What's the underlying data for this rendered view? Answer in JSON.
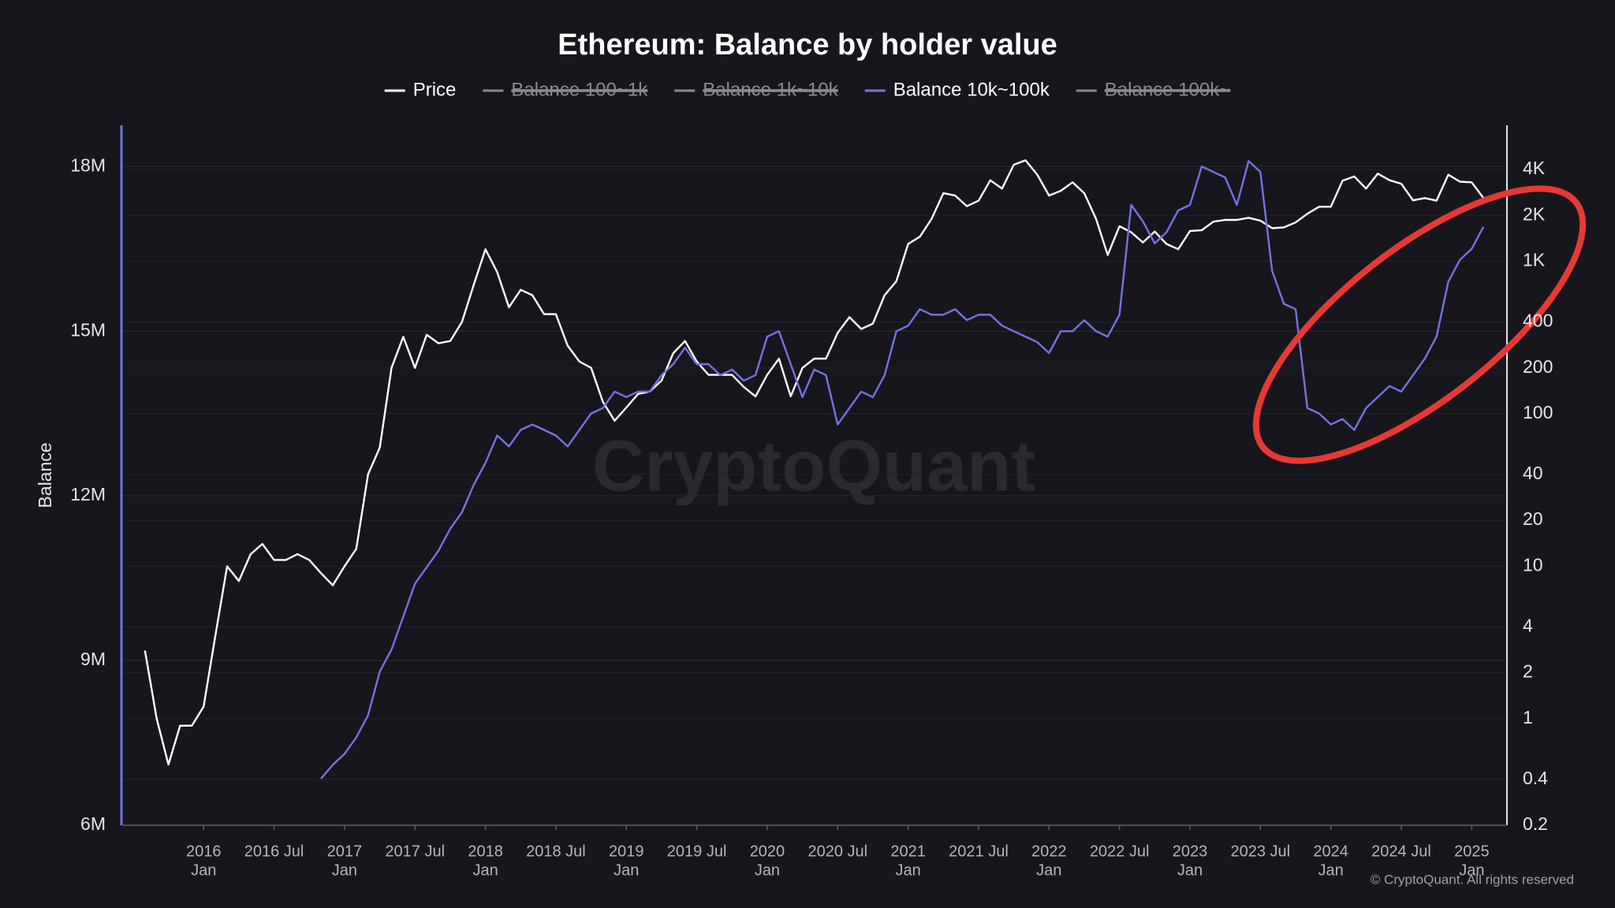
{
  "chart_data": {
    "type": "line",
    "title": "Ethereum: Balance by holder value",
    "ylabel": "Balance",
    "watermark": "CryptoQuant",
    "copyright": "© CryptoQuant. All rights reserved",
    "grid": true,
    "y2scale": "log",
    "xlim": [
      "2015-06",
      "2025-04"
    ],
    "ylim": [
      6000000,
      18750000
    ],
    "y2lim": [
      0.2,
      7800
    ],
    "yticks": [
      {
        "value": 6000000,
        "label": "6M"
      },
      {
        "value": 9000000,
        "label": "9M"
      },
      {
        "value": 12000000,
        "label": "12M"
      },
      {
        "value": 15000000,
        "label": "15M"
      },
      {
        "value": 18000000,
        "label": "18M"
      }
    ],
    "y2ticks": [
      0.2,
      0.4,
      1,
      2,
      4,
      10,
      20,
      40,
      100,
      200,
      400,
      {
        "value": 1000,
        "label": "1K"
      },
      {
        "value": 2000,
        "label": "2K"
      },
      {
        "value": 4000,
        "label": "4K"
      }
    ],
    "xticks": [
      {
        "value": "2016-01",
        "label": "2016",
        "sublabel": "Jan"
      },
      {
        "value": "2016-07",
        "label": "2016 Jul"
      },
      {
        "value": "2017-01",
        "label": "2017",
        "sublabel": "Jan"
      },
      {
        "value": "2017-07",
        "label": "2017 Jul"
      },
      {
        "value": "2018-01",
        "label": "2018",
        "sublabel": "Jan"
      },
      {
        "value": "2018-07",
        "label": "2018 Jul"
      },
      {
        "value": "2019-01",
        "label": "2019",
        "sublabel": "Jan"
      },
      {
        "value": "2019-07",
        "label": "2019 Jul"
      },
      {
        "value": "2020-01",
        "label": "2020",
        "sublabel": "Jan"
      },
      {
        "value": "2020-07",
        "label": "2020 Jul"
      },
      {
        "value": "2021-01",
        "label": "2021",
        "sublabel": "Jan"
      },
      {
        "value": "2021-07",
        "label": "2021 Jul"
      },
      {
        "value": "2022-01",
        "label": "2022",
        "sublabel": "Jan"
      },
      {
        "value": "2022-07",
        "label": "2022 Jul"
      },
      {
        "value": "2023-01",
        "label": "2023",
        "sublabel": "Jan"
      },
      {
        "value": "2023-07",
        "label": "2023 Jul"
      },
      {
        "value": "2024-01",
        "label": "2024",
        "sublabel": "Jan"
      },
      {
        "value": "2024-07",
        "label": "2024 Jul"
      },
      {
        "value": "2025-01",
        "label": "2025",
        "sublabel": "Jan"
      }
    ],
    "x": [
      "2015-08",
      "2015-09",
      "2015-10",
      "2015-11",
      "2015-12",
      "2016-01",
      "2016-02",
      "2016-03",
      "2016-04",
      "2016-05",
      "2016-06",
      "2016-07",
      "2016-08",
      "2016-09",
      "2016-10",
      "2016-11",
      "2016-12",
      "2017-01",
      "2017-02",
      "2017-03",
      "2017-04",
      "2017-05",
      "2017-06",
      "2017-07",
      "2017-08",
      "2017-09",
      "2017-10",
      "2017-11",
      "2017-12",
      "2018-01",
      "2018-02",
      "2018-03",
      "2018-04",
      "2018-05",
      "2018-06",
      "2018-07",
      "2018-08",
      "2018-09",
      "2018-10",
      "2018-11",
      "2018-12",
      "2019-01",
      "2019-02",
      "2019-03",
      "2019-04",
      "2019-05",
      "2019-06",
      "2019-07",
      "2019-08",
      "2019-09",
      "2019-10",
      "2019-11",
      "2019-12",
      "2020-01",
      "2020-02",
      "2020-03",
      "2020-04",
      "2020-05",
      "2020-06",
      "2020-07",
      "2020-08",
      "2020-09",
      "2020-10",
      "2020-11",
      "2020-12",
      "2021-01",
      "2021-02",
      "2021-03",
      "2021-04",
      "2021-05",
      "2021-06",
      "2021-07",
      "2021-08",
      "2021-09",
      "2021-10",
      "2021-11",
      "2021-12",
      "2022-01",
      "2022-02",
      "2022-03",
      "2022-04",
      "2022-05",
      "2022-06",
      "2022-07",
      "2022-08",
      "2022-09",
      "2022-10",
      "2022-11",
      "2022-12",
      "2023-01",
      "2023-02",
      "2023-03",
      "2023-04",
      "2023-05",
      "2023-06",
      "2023-07",
      "2023-08",
      "2023-09",
      "2023-10",
      "2023-11",
      "2023-12",
      "2024-01",
      "2024-02",
      "2024-03",
      "2024-04",
      "2024-05",
      "2024-06",
      "2024-07",
      "2024-08",
      "2024-09",
      "2024-10",
      "2024-11",
      "2024-12",
      "2025-01",
      "2025-02"
    ],
    "series": [
      {
        "name": "Price",
        "color": "#ffffff",
        "axis": "y2",
        "visible": true,
        "values": [
          2.8,
          1.0,
          0.5,
          0.9,
          0.9,
          1.2,
          3.5,
          10,
          8,
          12,
          14,
          11,
          11,
          12,
          11,
          9,
          7.5,
          10,
          13,
          40,
          60,
          200,
          320,
          200,
          330,
          290,
          300,
          400,
          700,
          1200,
          850,
          500,
          650,
          600,
          450,
          450,
          280,
          220,
          200,
          120,
          90,
          110,
          135,
          140,
          165,
          250,
          300,
          220,
          180,
          180,
          180,
          150,
          130,
          180,
          230,
          130,
          200,
          230,
          230,
          340,
          430,
          360,
          390,
          600,
          740,
          1300,
          1450,
          1900,
          2800,
          2700,
          2300,
          2500,
          3400,
          3000,
          4300,
          4600,
          3700,
          2700,
          2900,
          3300,
          2800,
          1900,
          1100,
          1700,
          1550,
          1330,
          1570,
          1300,
          1200,
          1580,
          1600,
          1820,
          1870,
          1870,
          1930,
          1850,
          1650,
          1670,
          1800,
          2050,
          2280,
          2280,
          3380,
          3600,
          3000,
          3760,
          3400,
          3230,
          2510,
          2600,
          2500,
          3700,
          3330,
          3300,
          2600
        ]
      },
      {
        "name": "Balance 100~1k",
        "visible": false
      },
      {
        "name": "Balance 1k~10k",
        "visible": false
      },
      {
        "name": "Balance 10k~100k",
        "color": "#7274e6",
        "visible": true,
        "values": [
          null,
          null,
          null,
          null,
          null,
          null,
          null,
          null,
          null,
          null,
          null,
          null,
          null,
          null,
          null,
          6850000,
          7100000,
          7300000,
          7600000,
          8000000,
          8800000,
          9200000,
          9800000,
          10400000,
          10700000,
          11000000,
          11400000,
          11700000,
          12200000,
          12600000,
          13100000,
          12900000,
          13200000,
          13300000,
          13200000,
          13100000,
          12900000,
          13200000,
          13500000,
          13600000,
          13900000,
          13800000,
          13900000,
          13900000,
          14200000,
          14400000,
          14700000,
          14400000,
          14400000,
          14200000,
          14300000,
          14100000,
          14200000,
          14900000,
          15000000,
          14400000,
          13800000,
          14300000,
          14200000,
          13300000,
          13600000,
          13900000,
          13800000,
          14200000,
          15000000,
          15100000,
          15400000,
          15300000,
          15300000,
          15400000,
          15200000,
          15300000,
          15300000,
          15100000,
          15000000,
          14900000,
          14800000,
          14600000,
          15000000,
          15000000,
          15200000,
          15000000,
          14900000,
          15300000,
          17300000,
          17000000,
          16600000,
          16800000,
          17200000,
          17300000,
          18000000,
          17900000,
          17800000,
          17300000,
          18100000,
          17900000,
          16100000,
          15500000,
          15400000,
          13600000,
          13500000,
          13300000,
          13400000,
          13200000,
          13600000,
          13800000,
          14000000,
          13900000,
          14200000,
          14500000,
          14900000,
          15900000,
          16300000,
          16500000,
          16900000
        ]
      },
      {
        "name": "Balance 100k~",
        "visible": false
      }
    ]
  }
}
